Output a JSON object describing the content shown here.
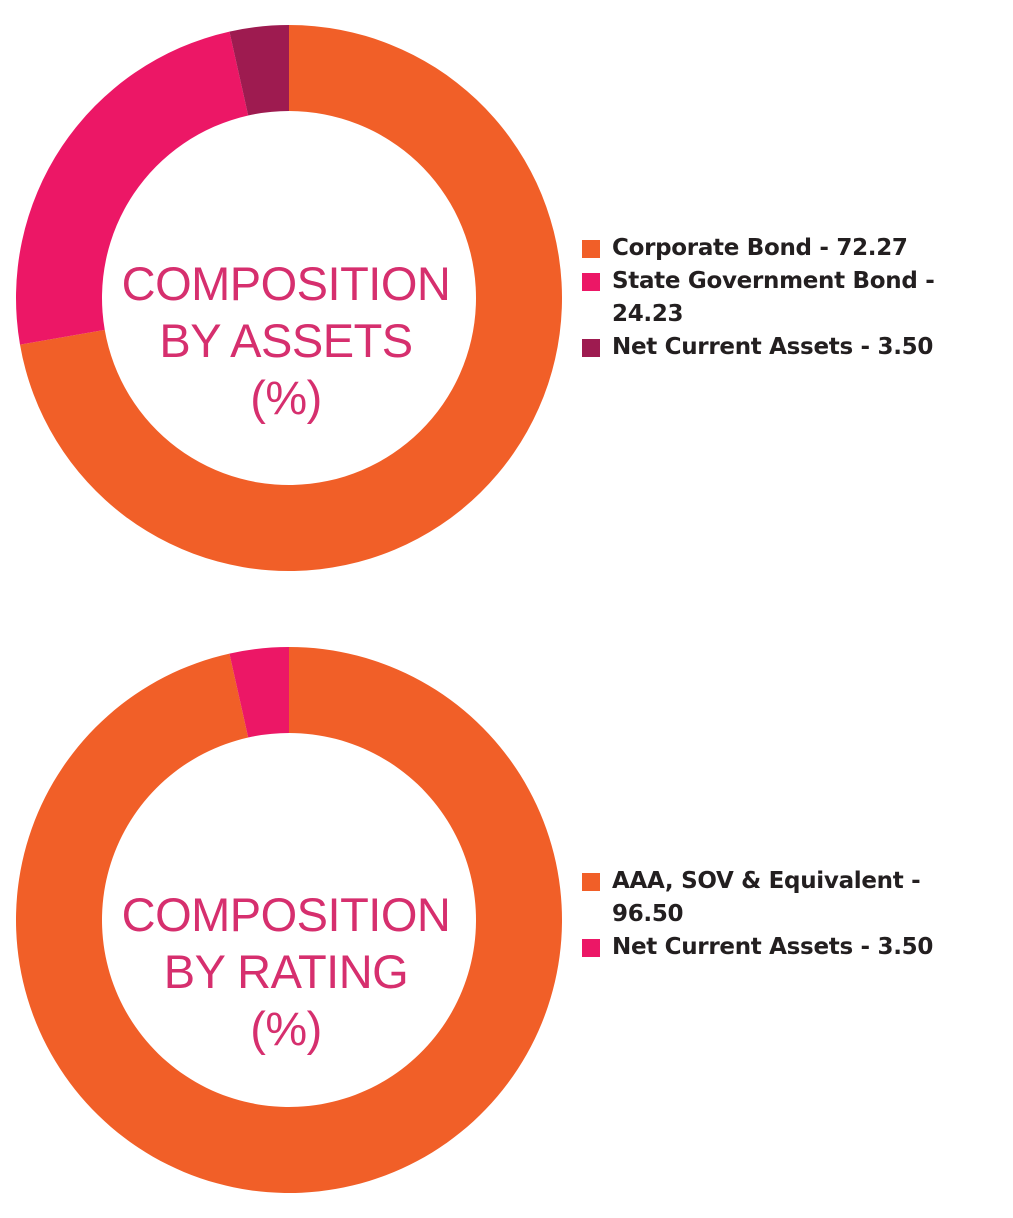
{
  "chart_data": [
    {
      "type": "pie",
      "title_lines": [
        "COMPOSITION",
        "BY ASSETS",
        "(%)"
      ],
      "categories": [
        "Corporate Bond",
        "State Government Bond",
        "Net Current Assets"
      ],
      "values": [
        72.27,
        24.23,
        3.5
      ],
      "colors": [
        "#f15f28",
        "#ec1766",
        "#9e1b50"
      ],
      "legend": [
        "Corporate Bond - 72.27",
        "State Government Bond - 24.23",
        "Net Current Assets - 3.50"
      ],
      "legend_position": "right"
    },
    {
      "type": "pie",
      "title_lines": [
        "COMPOSITION",
        "BY RATING",
        "(%)"
      ],
      "categories": [
        "AAA, SOV & Equivalent",
        "Net Current Assets"
      ],
      "values": [
        96.5,
        3.5
      ],
      "colors": [
        "#f15f28",
        "#ec1766"
      ],
      "legend": [
        "AAA, SOV & Equivalent -",
        "96.50",
        "Net Current Assets - 3.50"
      ],
      "legend_position": "right"
    }
  ]
}
